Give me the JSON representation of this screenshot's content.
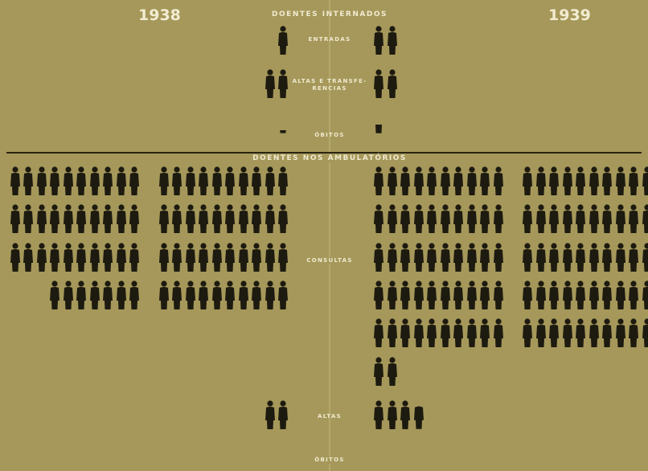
{
  "chart_data": {
    "type": "pictogram",
    "section_titles": [
      "DOENTES INTERNADOS",
      "DOENTES NOS AMBULATÓRIOS"
    ],
    "categories": [
      "ENTRADAS",
      "ALTAS E TRANSFE- RENCIAS",
      "ÓBITOS",
      "CONSULTAS",
      "ALTAS",
      "ÓBITOS"
    ],
    "series": [
      {
        "name": "1938",
        "color": "#1d1a10",
        "values": [
          1,
          2,
          0.1,
          77,
          2,
          0
        ]
      },
      {
        "name": "1939",
        "color": "#1d1a10",
        "values": [
          2,
          2,
          0.3,
          102,
          3.8,
          0
        ]
      }
    ]
  }
}
